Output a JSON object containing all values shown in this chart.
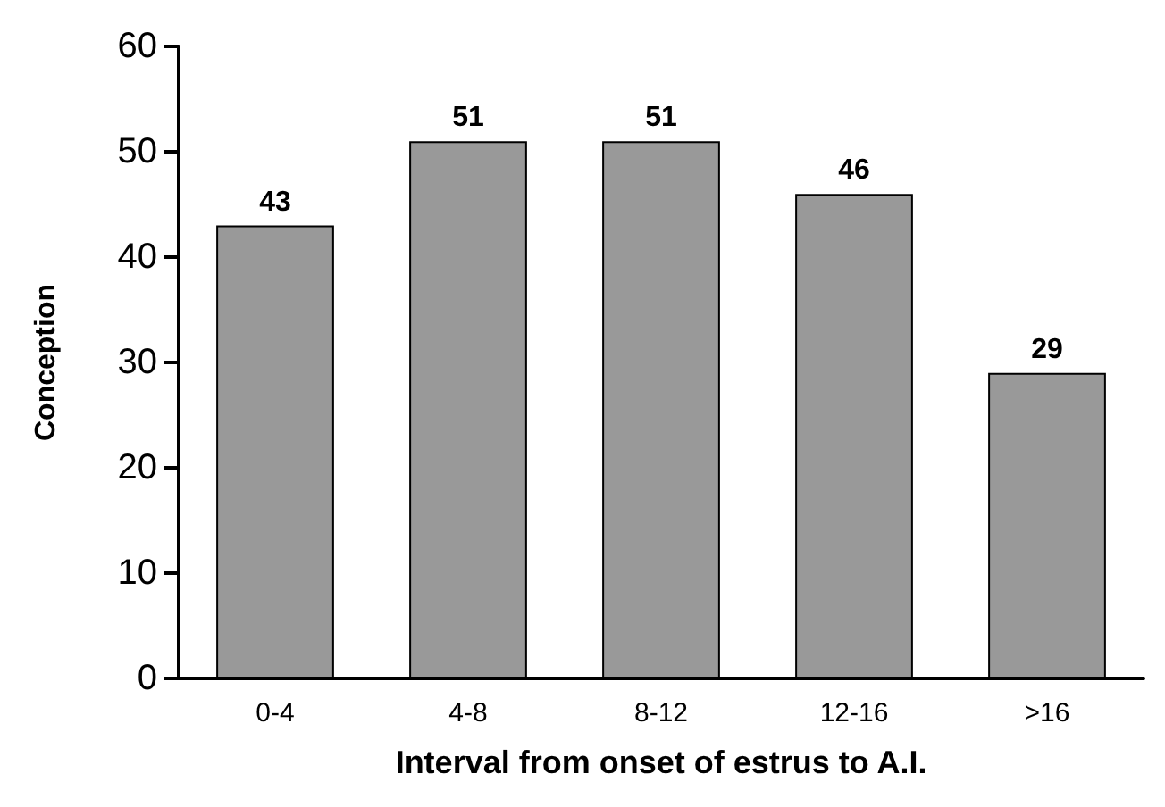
{
  "chart_data": {
    "type": "bar",
    "xlabel": "Interval from onset of estrus to A.I.",
    "ylabel": "Conception",
    "categories": [
      "0-4",
      "4-8",
      "8-12",
      "12-16",
      ">16"
    ],
    "values": [
      43,
      51,
      51,
      46,
      29
    ],
    "color": "#999999",
    "ylim": [
      0,
      60
    ],
    "yticks": [
      0,
      10,
      20,
      30,
      40,
      50,
      60
    ],
    "grid": false,
    "data_labels": true
  }
}
